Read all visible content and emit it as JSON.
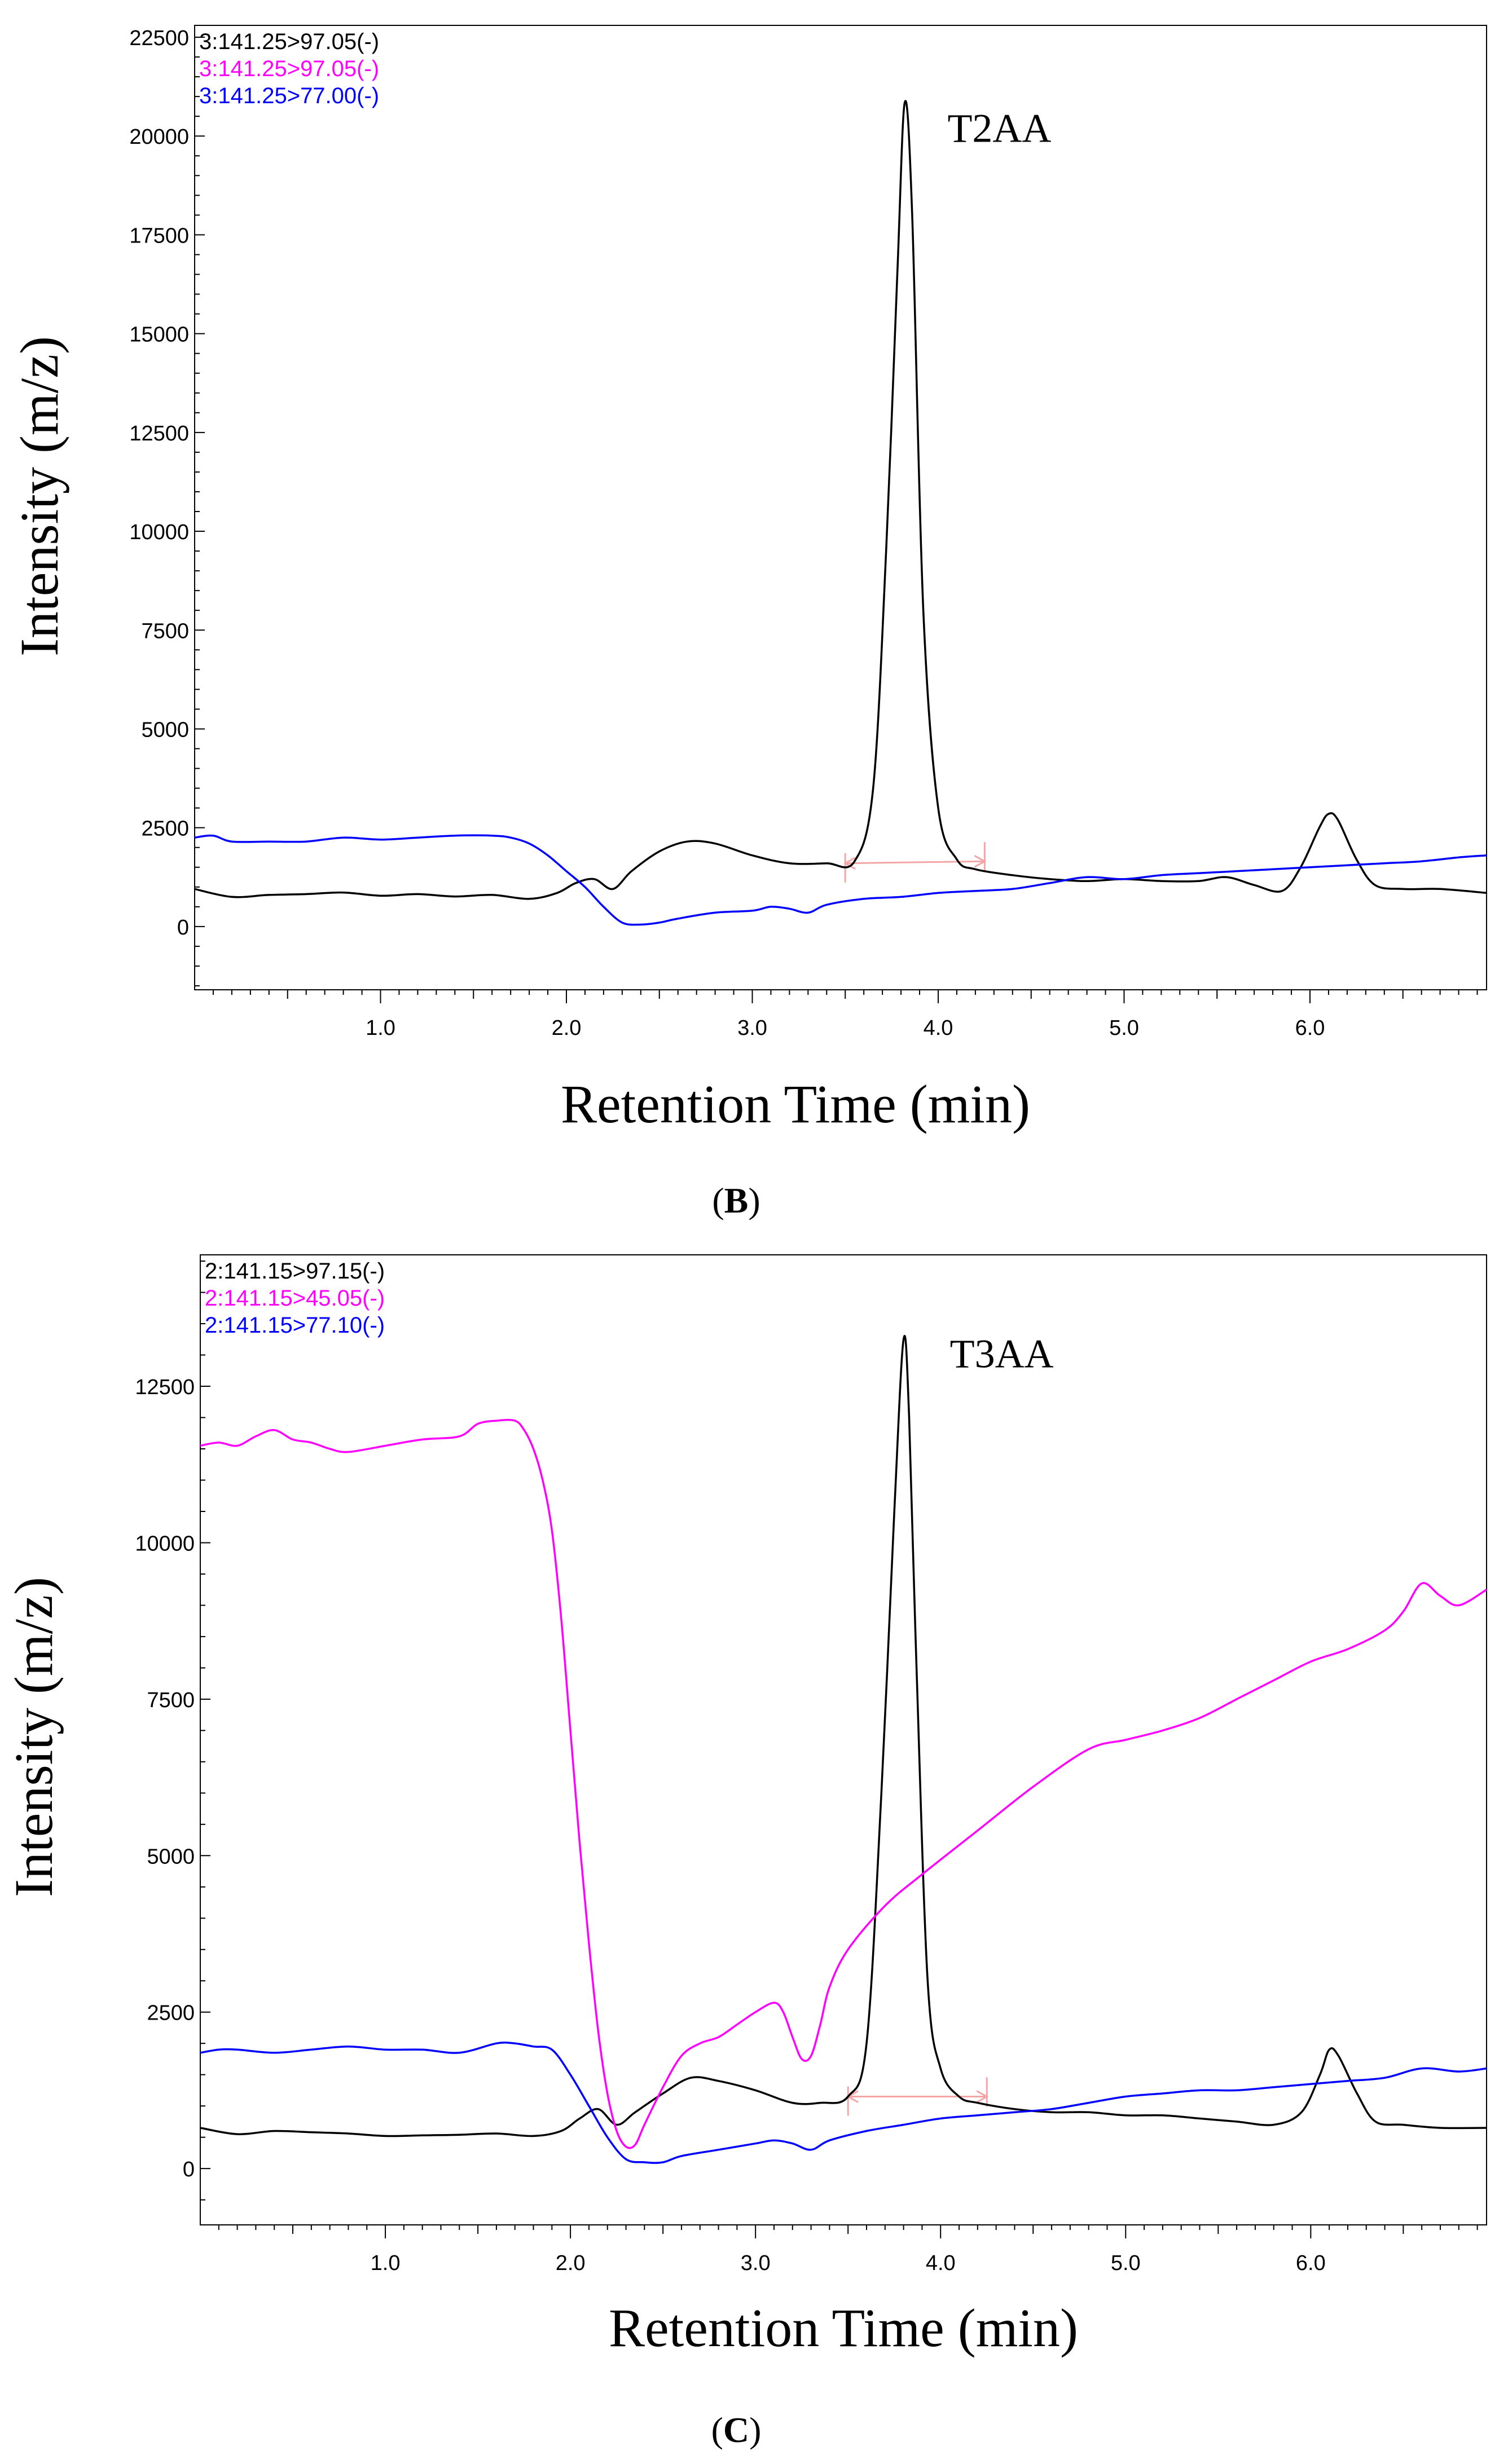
{
  "chart_data": [
    {
      "type": "line",
      "panel_label": "B",
      "xlabel": "Retention Time (min)",
      "ylabel": "Intensity (m/z)",
      "xlim": [
        0.0,
        6.95
      ],
      "ylim": [
        -1600,
        22800
      ],
      "x_ticks": [
        "1.0",
        "2.0",
        "3.0",
        "4.0",
        "5.0",
        "6.0"
      ],
      "y_ticks": [
        "22500",
        "20000",
        "17500",
        "15000",
        "12500",
        "10000",
        "7500",
        "5000",
        "2500",
        "0"
      ],
      "annotation": {
        "text": "T2AA",
        "x": 4.05,
        "y": 19850
      },
      "integration_baseline": {
        "x": [
          3.5,
          4.25
        ],
        "y": [
          1600,
          1650
        ],
        "color": "#f4a6a6"
      },
      "legend": [
        {
          "name": "3:141.25>97.05(-)",
          "color": "#000000"
        },
        {
          "name": "3:141.25>97.05(-)",
          "color": "#ff00ff"
        },
        {
          "name": "3:141.25>77.00(-)",
          "color": "#0000ff"
        }
      ],
      "series": [
        {
          "name": "3:141.25>97.05(-)",
          "color": "#000000",
          "x": [
            0.0,
            0.2,
            0.4,
            0.6,
            0.8,
            1.0,
            1.2,
            1.4,
            1.6,
            1.8,
            1.95,
            2.05,
            2.15,
            2.25,
            2.35,
            2.5,
            2.65,
            2.8,
            3.0,
            3.2,
            3.4,
            3.55,
            3.65,
            3.72,
            3.78,
            3.82,
            3.86,
            3.92,
            4.0,
            4.1,
            4.2,
            4.4,
            4.6,
            4.8,
            5.0,
            5.2,
            5.4,
            5.55,
            5.7,
            5.85,
            5.95,
            6.05,
            6.1,
            6.15,
            6.25,
            6.35,
            6.5,
            6.7,
            6.95
          ],
          "y": [
            950,
            750,
            800,
            820,
            860,
            780,
            820,
            760,
            800,
            700,
            850,
            1100,
            1200,
            950,
            1400,
            1900,
            2150,
            2100,
            1800,
            1600,
            1600,
            1650,
            3500,
            9500,
            16500,
            20850,
            18000,
            8000,
            3000,
            1700,
            1450,
            1300,
            1200,
            1150,
            1200,
            1150,
            1150,
            1250,
            1050,
            900,
            1500,
            2500,
            2850,
            2700,
            1700,
            1050,
            950,
            950,
            850
          ]
        },
        {
          "name": "3:141.25>77.00(-)",
          "color": "#0000ff",
          "x": [
            0.0,
            0.1,
            0.2,
            0.4,
            0.6,
            0.8,
            1.0,
            1.2,
            1.4,
            1.6,
            1.7,
            1.8,
            1.9,
            2.0,
            2.1,
            2.2,
            2.3,
            2.4,
            2.5,
            2.6,
            2.8,
            3.0,
            3.1,
            3.2,
            3.3,
            3.4,
            3.6,
            3.8,
            4.0,
            4.2,
            4.4,
            4.6,
            4.8,
            5.0,
            5.2,
            5.4,
            5.6,
            5.8,
            6.0,
            6.2,
            6.4,
            6.6,
            6.8,
            6.95
          ],
          "y": [
            2250,
            2300,
            2150,
            2150,
            2150,
            2250,
            2200,
            2250,
            2300,
            2300,
            2250,
            2100,
            1800,
            1400,
            1000,
            500,
            100,
            50,
            100,
            200,
            350,
            400,
            500,
            450,
            350,
            550,
            700,
            750,
            850,
            900,
            950,
            1100,
            1250,
            1200,
            1300,
            1350,
            1400,
            1450,
            1500,
            1550,
            1600,
            1650,
            1750,
            1800
          ]
        }
      ]
    },
    {
      "type": "line",
      "panel_label": "C",
      "xlabel": "Retention Time (min)",
      "ylabel": "Intensity (m/z)",
      "xlim": [
        0.0,
        6.95
      ],
      "ylim": [
        -900,
        14600
      ],
      "x_ticks": [
        "1.0",
        "2.0",
        "3.0",
        "4.0",
        "5.0",
        "6.0"
      ],
      "y_ticks": [
        "12500",
        "10000",
        "7500",
        "5000",
        "2500",
        "0"
      ],
      "annotation": {
        "text": "T3AA",
        "x": 4.05,
        "y": 12800
      },
      "integration_baseline": {
        "x": [
          3.5,
          4.25
        ],
        "y": [
          1150,
          1150
        ],
        "color": "#f4a6a6"
      },
      "legend": [
        {
          "name": "2:141.15>97.15(-)",
          "color": "#000000"
        },
        {
          "name": "2:141.15>45.05(-)",
          "color": "#ff00ff"
        },
        {
          "name": "2:141.15>77.10(-)",
          "color": "#0000ff"
        }
      ],
      "series": [
        {
          "name": "2:141.15>97.15(-)",
          "color": "#000000",
          "x": [
            0.0,
            0.2,
            0.4,
            0.6,
            0.8,
            1.0,
            1.2,
            1.4,
            1.6,
            1.8,
            1.95,
            2.05,
            2.15,
            2.25,
            2.35,
            2.5,
            2.65,
            2.8,
            3.0,
            3.2,
            3.35,
            3.5,
            3.6,
            3.68,
            3.75,
            3.8,
            3.83,
            3.87,
            3.93,
            4.0,
            4.1,
            4.2,
            4.4,
            4.6,
            4.8,
            5.0,
            5.2,
            5.4,
            5.6,
            5.8,
            5.95,
            6.05,
            6.1,
            6.15,
            6.25,
            6.35,
            6.5,
            6.7,
            6.95
          ],
          "y": [
            650,
            550,
            600,
            580,
            560,
            520,
            530,
            540,
            560,
            520,
            600,
            800,
            950,
            700,
            900,
            1200,
            1450,
            1400,
            1250,
            1050,
            1050,
            1150,
            2000,
            6000,
            10500,
            13250,
            12000,
            8000,
            3000,
            1600,
            1150,
            1050,
            950,
            900,
            900,
            850,
            850,
            800,
            750,
            700,
            900,
            1500,
            1900,
            1800,
            1200,
            750,
            700,
            650,
            650
          ]
        },
        {
          "name": "2:141.15>45.05(-)",
          "color": "#ff00ff",
          "x": [
            0.0,
            0.1,
            0.2,
            0.3,
            0.4,
            0.5,
            0.6,
            0.7,
            0.8,
            1.0,
            1.2,
            1.4,
            1.5,
            1.6,
            1.7,
            1.75,
            1.8,
            1.85,
            1.9,
            1.95,
            2.0,
            2.05,
            2.1,
            2.15,
            2.2,
            2.25,
            2.3,
            2.35,
            2.4,
            2.5,
            2.6,
            2.7,
            2.8,
            2.9,
            3.0,
            3.1,
            3.15,
            3.2,
            3.25,
            3.3,
            3.35,
            3.4,
            3.5,
            3.7,
            3.9,
            4.2,
            4.5,
            4.8,
            5.0,
            5.2,
            5.4,
            5.6,
            5.8,
            6.0,
            6.2,
            6.4,
            6.5,
            6.6,
            6.7,
            6.8,
            6.95
          ],
          "y": [
            11550,
            11600,
            11550,
            11700,
            11800,
            11650,
            11600,
            11500,
            11450,
            11550,
            11650,
            11700,
            11900,
            11950,
            11950,
            11800,
            11500,
            11000,
            10200,
            8800,
            7000,
            5200,
            3600,
            2200,
            1200,
            600,
            350,
            380,
            700,
            1300,
            1800,
            2000,
            2100,
            2300,
            2500,
            2650,
            2500,
            2100,
            1750,
            1800,
            2300,
            2900,
            3500,
            4200,
            4700,
            5400,
            6100,
            6700,
            6850,
            7000,
            7200,
            7500,
            7800,
            8100,
            8300,
            8600,
            8900,
            9350,
            9150,
            9000,
            9250
          ]
        },
        {
          "name": "2:141.15>77.10(-)",
          "color": "#0000ff",
          "x": [
            0.0,
            0.1,
            0.2,
            0.4,
            0.6,
            0.8,
            1.0,
            1.2,
            1.4,
            1.6,
            1.7,
            1.8,
            1.9,
            2.0,
            2.1,
            2.2,
            2.3,
            2.4,
            2.5,
            2.6,
            2.8,
            3.0,
            3.1,
            3.2,
            3.3,
            3.4,
            3.6,
            3.8,
            4.0,
            4.2,
            4.4,
            4.6,
            4.8,
            5.0,
            5.2,
            5.4,
            5.6,
            5.8,
            6.0,
            6.2,
            6.4,
            6.6,
            6.8,
            6.95
          ],
          "y": [
            1850,
            1900,
            1900,
            1850,
            1900,
            1950,
            1900,
            1900,
            1850,
            2000,
            2000,
            1950,
            1900,
            1500,
            1000,
            500,
            150,
            100,
            100,
            200,
            300,
            400,
            450,
            400,
            300,
            450,
            600,
            700,
            800,
            850,
            900,
            950,
            1050,
            1150,
            1200,
            1250,
            1250,
            1300,
            1350,
            1400,
            1450,
            1600,
            1550,
            1600
          ]
        }
      ]
    }
  ]
}
